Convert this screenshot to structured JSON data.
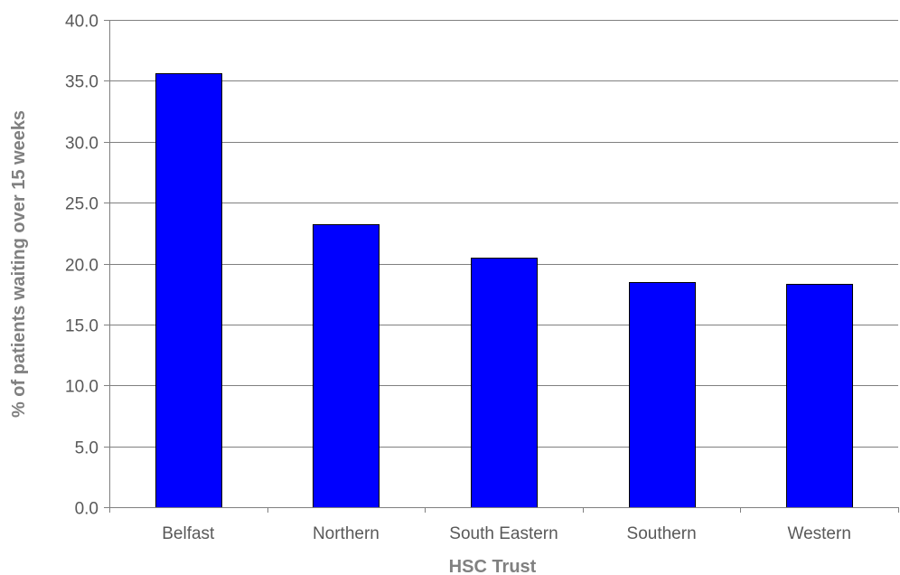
{
  "chart_data": {
    "type": "bar",
    "title": "",
    "xlabel": "HSC Trust",
    "ylabel": "% of patients waiting over 15 weeks",
    "categories": [
      "Belfast",
      "Northern",
      "South Eastern",
      "Southern",
      "Western"
    ],
    "values": [
      35.6,
      23.2,
      20.5,
      18.5,
      18.3
    ],
    "ylim": [
      0,
      40
    ],
    "yticks": [
      "0.0",
      "5.0",
      "10.0",
      "15.0",
      "20.0",
      "25.0",
      "30.0",
      "35.0",
      "40.0"
    ],
    "grid": true,
    "legend": "none",
    "colors": {
      "bar_fill": "#0000ff",
      "bar_stroke": "#000000",
      "grid": "#808080",
      "axis": "#808080",
      "tick_label": "#595959",
      "axis_title": "#808080"
    }
  }
}
